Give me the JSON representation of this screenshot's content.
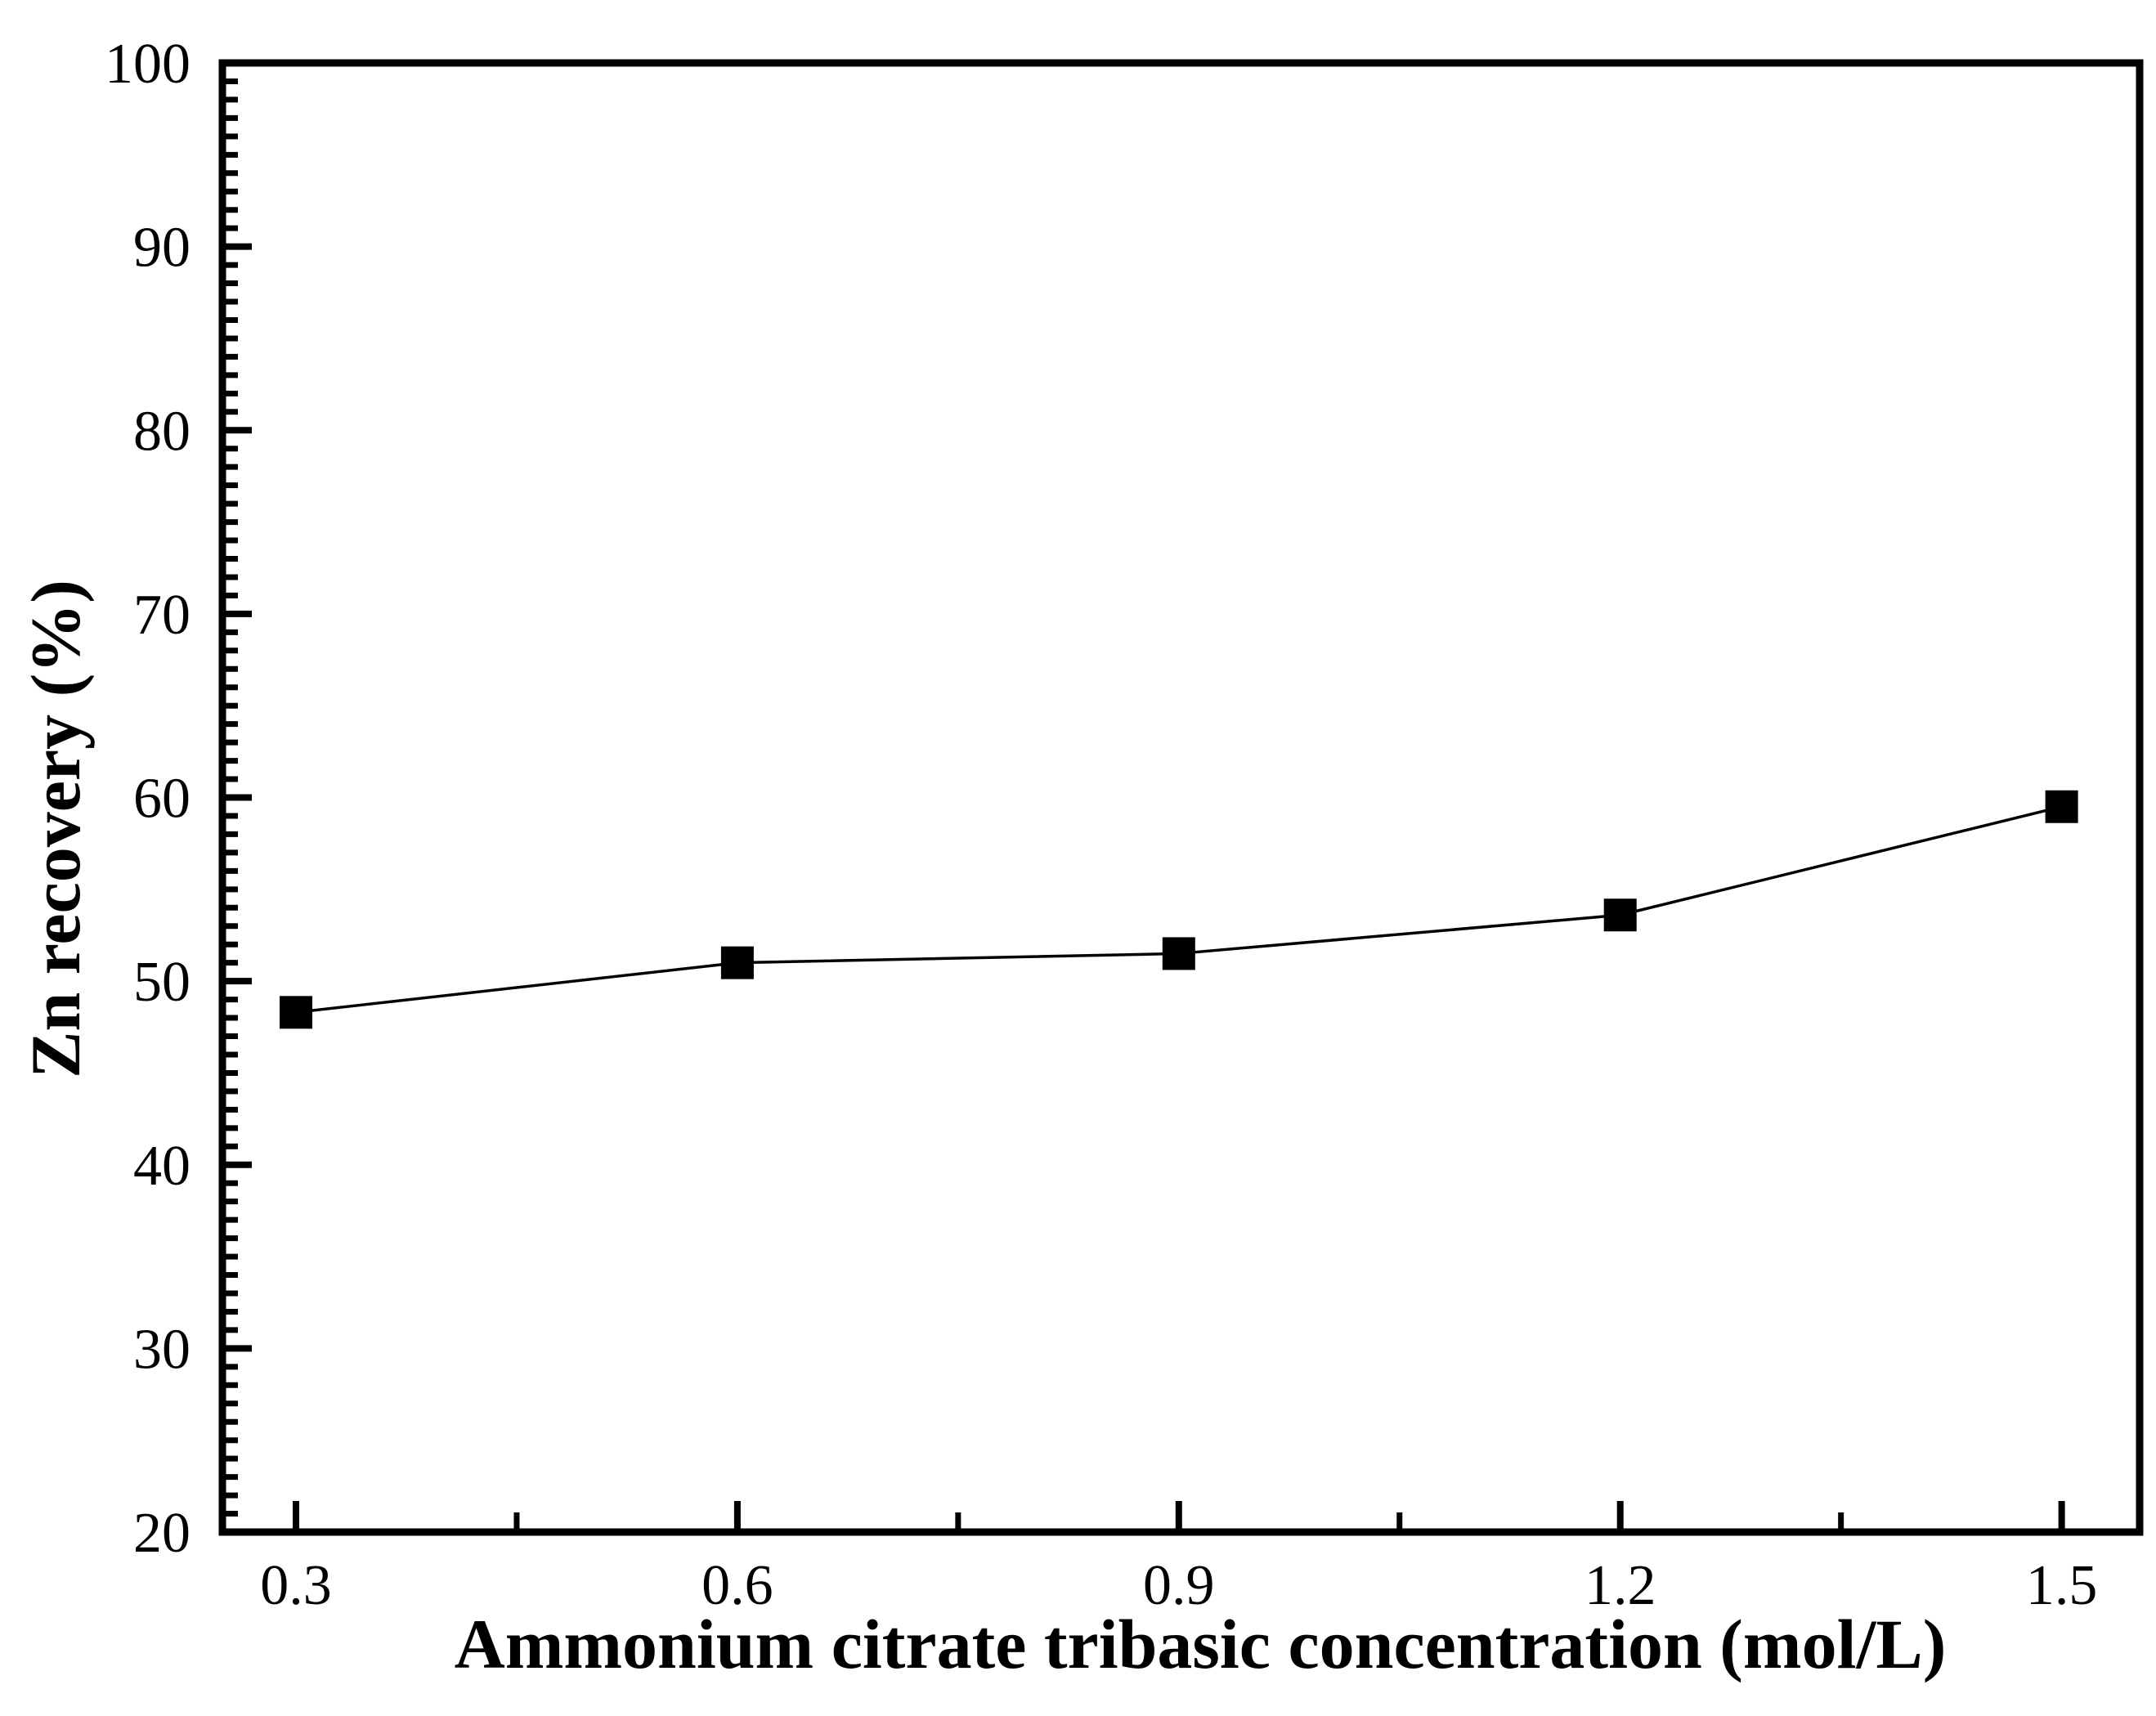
{
  "figure": {
    "background": "#ffffff",
    "foreground": "#000000"
  },
  "chart_data": {
    "type": "line",
    "title": "",
    "xlabel": "Ammonium citrate tribasic concentration (mol/L)",
    "ylabel": "Zn recovery (%)",
    "series": [
      {
        "name": "Zn recovery",
        "marker": "filled-square",
        "marker_color": "#000000",
        "line_color": "#000000",
        "x": [
          0.3,
          0.6,
          0.9,
          1.2,
          1.5
        ],
        "y": [
          48.3,
          51.0,
          51.5,
          53.6,
          59.5
        ]
      }
    ],
    "x_ticks": {
      "values": [
        0.3,
        0.6,
        0.9,
        1.2,
        1.5
      ],
      "labels": [
        "0.3",
        "0.6",
        "0.9",
        "1.2",
        "1.5"
      ]
    },
    "x_minor_ticks": [
      0.45,
      0.75,
      1.05,
      1.35
    ],
    "y_ticks": {
      "values": [
        20,
        30,
        40,
        50,
        60,
        70,
        80,
        90,
        100
      ],
      "labels": [
        "20",
        "30",
        "40",
        "50",
        "60",
        "70",
        "80",
        "90",
        "100"
      ]
    },
    "y_minor_step": 1,
    "xlim": [
      0.25,
      1.553
    ],
    "ylim": [
      20,
      100
    ],
    "grid": false,
    "legend": null,
    "tick_direction": "in"
  }
}
